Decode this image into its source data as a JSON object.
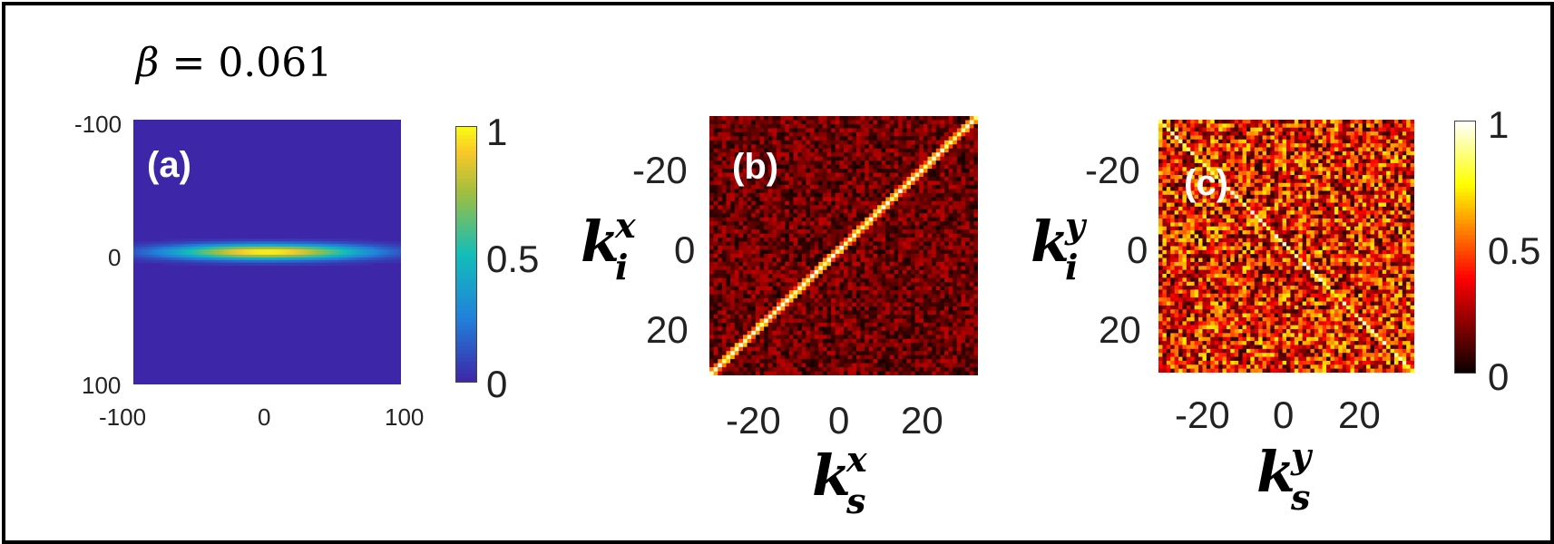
{
  "title": {
    "symbol": "β",
    "equals": "=",
    "value": "0.061"
  },
  "colors": {
    "parula_low": "#3E26A8",
    "parula_high": "#F9FB15",
    "hot_low": "#000000",
    "hot_high": "#FFFFFF"
  },
  "chart_data": [
    {
      "type": "heatmap",
      "panel_label": "(a)",
      "colormap": "parula",
      "x_ticks": [
        "-100",
        "0",
        "100"
      ],
      "y_ticks": [
        "-100",
        "0",
        "100"
      ],
      "xlim": [
        -100,
        100
      ],
      "ylim": [
        -100,
        100
      ],
      "y_reversed": true,
      "feature": {
        "shape": "elongated horizontal ellipse",
        "center": [
          0,
          0
        ],
        "x_half_width": 90,
        "y_half_width": 6,
        "peak": 1
      },
      "colorbar": {
        "ticks": [
          "1",
          "0.5",
          "0"
        ],
        "range": [
          0,
          1
        ]
      }
    },
    {
      "type": "heatmap",
      "panel_label": "(b)",
      "colormap": "hot",
      "x_ticks": [
        "-20",
        "0",
        "20"
      ],
      "y_ticks": [
        "-20",
        "0",
        "20"
      ],
      "xlim": [
        -32,
        32
      ],
      "ylim": [
        -32,
        32
      ],
      "y_reversed": true,
      "grid_size": 64,
      "feature": {
        "shape": "anti-diagonal line (k_i = -k_s)",
        "peak": 1,
        "background_mean": 0.15
      },
      "xlabel": {
        "base": "k",
        "sup": "x",
        "sub": "s"
      },
      "ylabel": {
        "base": "k",
        "sup": "x",
        "sub": "i"
      }
    },
    {
      "type": "heatmap",
      "panel_label": "(c)",
      "colormap": "hot",
      "x_ticks": [
        "-20",
        "0",
        "20"
      ],
      "y_ticks": [
        "-20",
        "0",
        "20"
      ],
      "xlim": [
        -32,
        32
      ],
      "ylim": [
        -32,
        32
      ],
      "y_reversed": true,
      "grid_size": 64,
      "feature": {
        "shape": "diagonal line (k_i = k_s)",
        "peak": 1,
        "background_mean": 0.38
      },
      "xlabel": {
        "base": "k",
        "sup": "y",
        "sub": "s"
      },
      "ylabel": {
        "base": "k",
        "sup": "y",
        "sub": "i"
      },
      "colorbar": {
        "ticks": [
          "1",
          "0.5",
          "0"
        ],
        "range": [
          0,
          1
        ]
      }
    }
  ]
}
